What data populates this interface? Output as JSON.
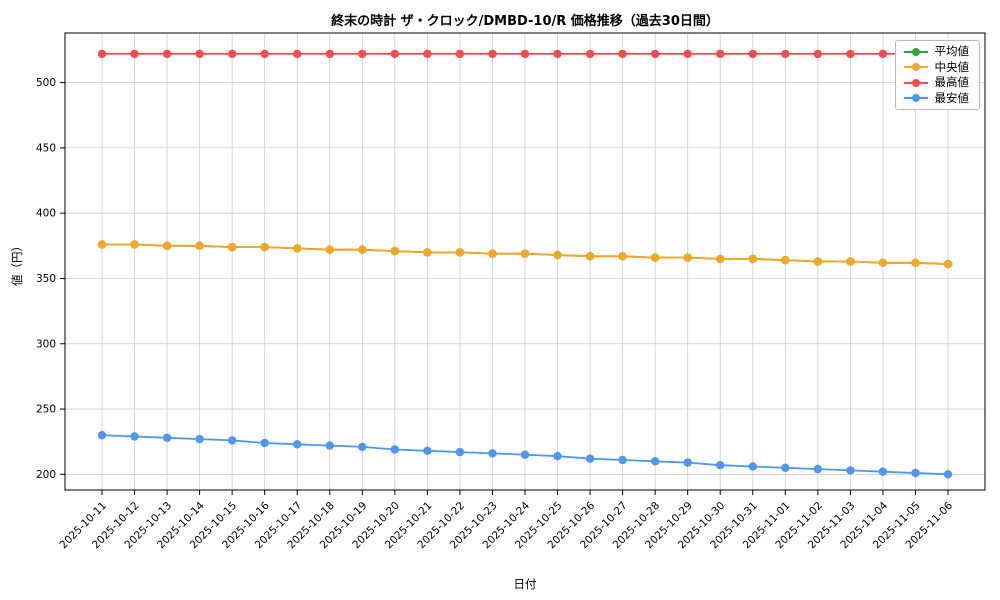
{
  "chart_data": {
    "type": "line",
    "title": "終末の時計 ザ・クロック/DMBD-10/R 価格推移（過去30日間）",
    "xlabel": "日付",
    "ylabel": "値（円）",
    "grid": true,
    "legend_position": "top-right",
    "ylim": [
      188,
      538
    ],
    "yticks": [
      200,
      250,
      300,
      350,
      400,
      450,
      500
    ],
    "x": [
      "2025-10-11",
      "2025-10-12",
      "2025-10-13",
      "2025-10-14",
      "2025-10-15",
      "2025-10-16",
      "2025-10-17",
      "2025-10-18",
      "2025-10-19",
      "2025-10-20",
      "2025-10-21",
      "2025-10-22",
      "2025-10-23",
      "2025-10-24",
      "2025-10-25",
      "2025-10-26",
      "2025-10-27",
      "2025-10-28",
      "2025-10-29",
      "2025-10-30",
      "2025-10-31",
      "2025-11-01",
      "2025-11-02",
      "2025-11-03",
      "2025-11-04",
      "2025-11-05",
      "2025-11-06"
    ],
    "series": [
      {
        "name": "平均値",
        "color": "#2ca63c",
        "values": [
          376,
          376,
          375,
          375,
          374,
          374,
          373,
          372,
          372,
          371,
          370,
          370,
          369,
          369,
          368,
          367,
          367,
          366,
          366,
          365,
          365,
          364,
          363,
          363,
          362,
          362,
          361
        ]
      },
      {
        "name": "中央値",
        "color": "#f5a623",
        "values": [
          376,
          376,
          375,
          375,
          374,
          374,
          373,
          372,
          372,
          371,
          370,
          370,
          369,
          369,
          368,
          367,
          367,
          366,
          366,
          365,
          365,
          364,
          363,
          363,
          362,
          362,
          361
        ]
      },
      {
        "name": "最高値",
        "color": "#f94b4b",
        "values": [
          522,
          522,
          522,
          522,
          522,
          522,
          522,
          522,
          522,
          522,
          522,
          522,
          522,
          522,
          522,
          522,
          522,
          522,
          522,
          522,
          522,
          522,
          522,
          522,
          522,
          522,
          522
        ]
      },
      {
        "name": "最安値",
        "color": "#4d96f2",
        "values": [
          230,
          229,
          228,
          227,
          226,
          224,
          223,
          222,
          221,
          219,
          218,
          217,
          216,
          215,
          214,
          212,
          211,
          210,
          209,
          207,
          206,
          205,
          204,
          203,
          202,
          201,
          200
        ]
      }
    ]
  }
}
